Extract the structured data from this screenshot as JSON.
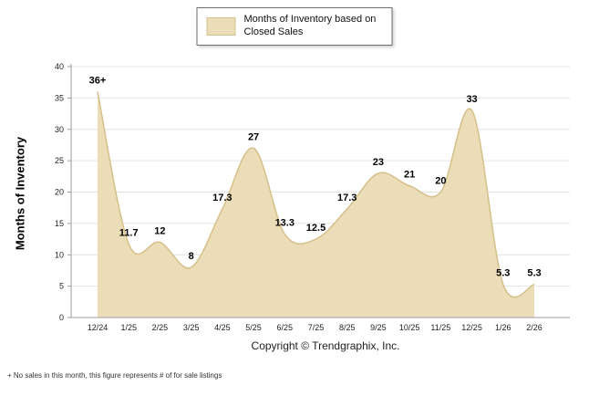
{
  "legend": {
    "label": "Months of Inventory based on Closed Sales"
  },
  "footer": {
    "copyright": "Copyright © Trendgraphix, Inc.",
    "footnote": "+ No sales in this month, this figure represents # of for sale listings"
  },
  "chart_data": {
    "type": "area",
    "title": "Months of Inventory based on Closed Sales",
    "categories": [
      "12/24",
      "1/25",
      "2/25",
      "3/25",
      "4/25",
      "5/25",
      "6/25",
      "7/25",
      "8/25",
      "9/25",
      "10/25",
      "11/25",
      "12/25",
      "1/26",
      "2/26"
    ],
    "values": [
      36,
      11.7,
      12,
      8,
      17.3,
      27,
      13.3,
      12.5,
      17.3,
      23,
      21,
      20,
      33,
      5.3,
      5.3
    ],
    "point_labels": [
      "36+",
      "11.7",
      "12",
      "8",
      "17.3",
      "27",
      "13.3",
      "12.5",
      "17.3",
      "23",
      "21",
      "20",
      "33",
      "5.3",
      "5.3"
    ],
    "xlabel": "",
    "ylabel": "Months of Inventory",
    "ylim": [
      0,
      40
    ],
    "ytick_step": 5,
    "grid": true,
    "legend_position": "top-center",
    "colors": {
      "fill": "#ebddb7",
      "stroke": "#d6c08a",
      "grid": "#e4e4e4",
      "axis": "#9e9e9e"
    }
  }
}
